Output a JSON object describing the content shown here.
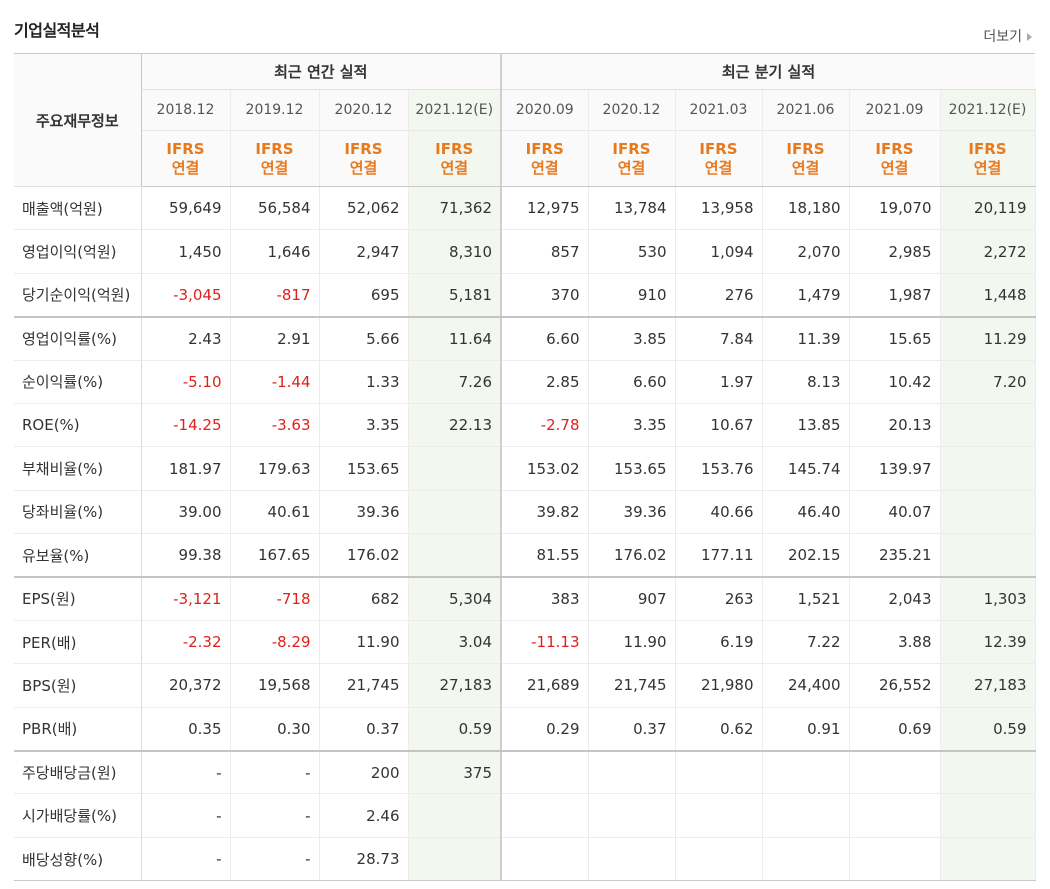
{
  "title": "기업실적분석",
  "more_label": "더보기",
  "header": {
    "corner": "주요재무정보",
    "annual_group": "최근 연간 실적",
    "quarter_group": "최근 분기 실적",
    "periods": [
      "2018.12",
      "2019.12",
      "2020.12",
      "2021.12(E)",
      "2020.09",
      "2020.12",
      "2021.03",
      "2021.06",
      "2021.09",
      "2021.12(E)"
    ],
    "ifrs_line1": "IFRS",
    "ifrs_line2": "연결"
  },
  "rows": [
    {
      "label": "매출액(억원)",
      "values": [
        "59,649",
        "56,584",
        "52,062",
        "71,362",
        "12,975",
        "13,784",
        "13,958",
        "18,180",
        "19,070",
        "20,119"
      ]
    },
    {
      "label": "영업이익(억원)",
      "values": [
        "1,450",
        "1,646",
        "2,947",
        "8,310",
        "857",
        "530",
        "1,094",
        "2,070",
        "2,985",
        "2,272"
      ]
    },
    {
      "label": "당기순이익(억원)",
      "values": [
        "-3,045",
        "-817",
        "695",
        "5,181",
        "370",
        "910",
        "276",
        "1,479",
        "1,987",
        "1,448"
      ]
    },
    {
      "label": "영업이익률(%)",
      "values": [
        "2.43",
        "2.91",
        "5.66",
        "11.64",
        "6.60",
        "3.85",
        "7.84",
        "11.39",
        "15.65",
        "11.29"
      ]
    },
    {
      "label": "순이익률(%)",
      "values": [
        "-5.10",
        "-1.44",
        "1.33",
        "7.26",
        "2.85",
        "6.60",
        "1.97",
        "8.13",
        "10.42",
        "7.20"
      ]
    },
    {
      "label": "ROE(%)",
      "values": [
        "-14.25",
        "-3.63",
        "3.35",
        "22.13",
        "-2.78",
        "3.35",
        "10.67",
        "13.85",
        "20.13",
        ""
      ]
    },
    {
      "label": "부채비율(%)",
      "values": [
        "181.97",
        "179.63",
        "153.65",
        "",
        "153.02",
        "153.65",
        "153.76",
        "145.74",
        "139.97",
        ""
      ]
    },
    {
      "label": "당좌비율(%)",
      "values": [
        "39.00",
        "40.61",
        "39.36",
        "",
        "39.82",
        "39.36",
        "40.66",
        "46.40",
        "40.07",
        ""
      ]
    },
    {
      "label": "유보율(%)",
      "values": [
        "99.38",
        "167.65",
        "176.02",
        "",
        "81.55",
        "176.02",
        "177.11",
        "202.15",
        "235.21",
        ""
      ]
    },
    {
      "label": "EPS(원)",
      "values": [
        "-3,121",
        "-718",
        "682",
        "5,304",
        "383",
        "907",
        "263",
        "1,521",
        "2,043",
        "1,303"
      ]
    },
    {
      "label": "PER(배)",
      "values": [
        "-2.32",
        "-8.29",
        "11.90",
        "3.04",
        "-11.13",
        "11.90",
        "6.19",
        "7.22",
        "3.88",
        "12.39"
      ]
    },
    {
      "label": "BPS(원)",
      "values": [
        "20,372",
        "19,568",
        "21,745",
        "27,183",
        "21,689",
        "21,745",
        "21,980",
        "24,400",
        "26,552",
        "27,183"
      ]
    },
    {
      "label": "PBR(배)",
      "values": [
        "0.35",
        "0.30",
        "0.37",
        "0.59",
        "0.29",
        "0.37",
        "0.62",
        "0.91",
        "0.69",
        "0.59"
      ]
    },
    {
      "label": "주당배당금(원)",
      "values": [
        "-",
        "-",
        "200",
        "375",
        "",
        "",
        "",
        "",
        "",
        ""
      ]
    },
    {
      "label": "시가배당률(%)",
      "values": [
        "-",
        "-",
        "2.46",
        "",
        "",
        "",
        "",
        "",
        "",
        ""
      ]
    },
    {
      "label": "배당성향(%)",
      "values": [
        "-",
        "-",
        "28.73",
        "",
        "",
        "",
        "",
        "",
        "",
        ""
      ]
    }
  ],
  "colors": {
    "negative": "#e0201b",
    "ifrs": "#e87a1e",
    "estimate_bg": "#f2f7f0"
  }
}
